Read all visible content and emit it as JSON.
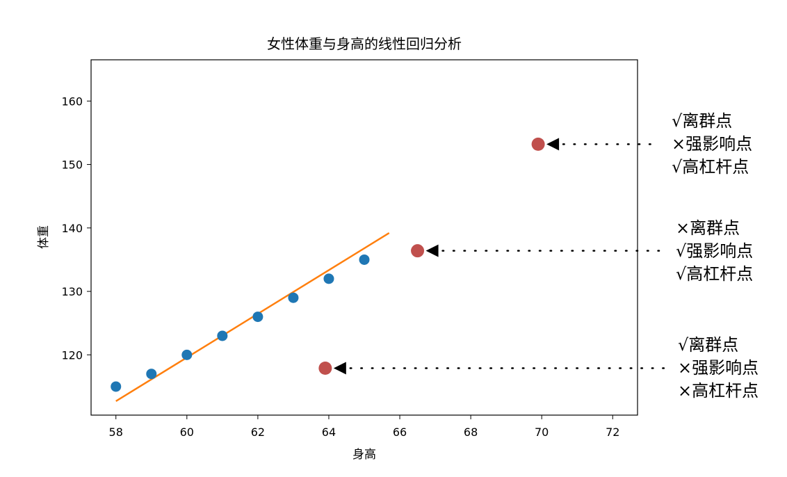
{
  "chart_data": {
    "type": "scatter",
    "title": "女性体重与身高的线性回归分析",
    "xlabel": "身高",
    "ylabel": "体重",
    "xlim": [
      57.3,
      72.7
    ],
    "ylim": [
      110.5,
      166.5
    ],
    "xticks": [
      58,
      60,
      62,
      64,
      66,
      68,
      70,
      72
    ],
    "yticks": [
      120,
      130,
      140,
      150,
      160
    ],
    "grid": false,
    "series": [
      {
        "points": [
          [
            58,
            115
          ],
          [
            59,
            117
          ],
          [
            60,
            120
          ],
          [
            61,
            123
          ],
          [
            62,
            126
          ],
          [
            63,
            129
          ],
          [
            64,
            132
          ],
          [
            65,
            135
          ]
        ],
        "color": "#1f77b4"
      }
    ],
    "fit_line": {
      "x": [
        58,
        65.7
      ],
      "y": [
        112.7,
        139.2
      ],
      "color": "#ff7f0e"
    },
    "highlighted_points": [
      {
        "x": 69.9,
        "y": 153.2,
        "color": "#c0504d",
        "labels": [
          "√离群点",
          "×强影响点",
          "√高杠杆点"
        ]
      },
      {
        "x": 66.5,
        "y": 136.4,
        "color": "#c0504d",
        "labels": [
          "×离群点",
          "√强影响点",
          "√高杠杆点"
        ]
      },
      {
        "x": 63.9,
        "y": 117.9,
        "color": "#c0504d",
        "labels": [
          "√离群点",
          "×强影响点",
          "×高杠杆点"
        ]
      }
    ]
  }
}
